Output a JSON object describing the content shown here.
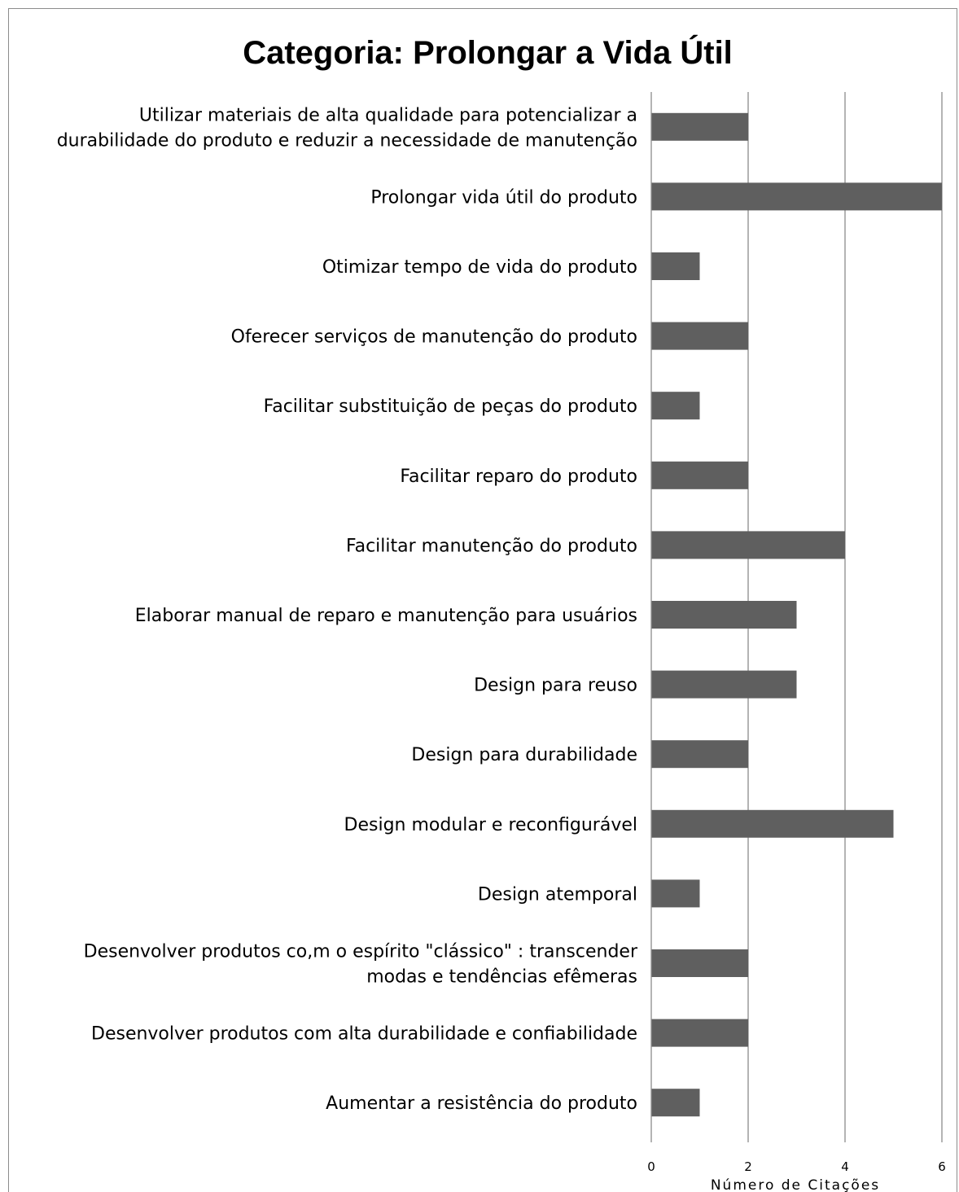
{
  "chart_data": {
    "type": "bar",
    "orientation": "horizontal",
    "title": "Categoria: Prolongar a Vida Útil",
    "xlabel": "Número de Citações",
    "ylabel": "",
    "xlim": [
      0,
      6
    ],
    "x_ticks": [
      "0",
      "2",
      "4",
      "6"
    ],
    "grid": true,
    "bar_color": "#5f5f5f",
    "categories": [
      [
        "Utilizar materiais de alta qualidade para potencializar a",
        "durabilidade do produto e reduzir a necessidade de manutenção"
      ],
      [
        "Prolongar vida útil do produto"
      ],
      [
        "Otimizar tempo de vida do produto"
      ],
      [
        "Oferecer serviços de manutenção do  produto"
      ],
      [
        "Facilitar substituição de  peças do produto"
      ],
      [
        "Facilitar reparo do produto"
      ],
      [
        "Facilitar manutenção do produto"
      ],
      [
        "Elaborar manual de reparo e manutenção para usuários"
      ],
      [
        "Design para reuso"
      ],
      [
        "Design para durabilidade"
      ],
      [
        "Design  modular e reconfigurável"
      ],
      [
        "Design atemporal"
      ],
      [
        "Desenvolver produtos co,m o espírito \"clássico\" : transcender",
        "modas e tendências efêmeras"
      ],
      [
        "Desenvolver produtos com alta durabilidade e confiabilidade"
      ],
      [
        "Aumentar a resistência do  produto"
      ]
    ],
    "values": [
      2,
      6,
      1,
      2,
      1,
      2,
      4,
      3,
      3,
      2,
      5,
      1,
      2,
      2,
      1
    ]
  }
}
